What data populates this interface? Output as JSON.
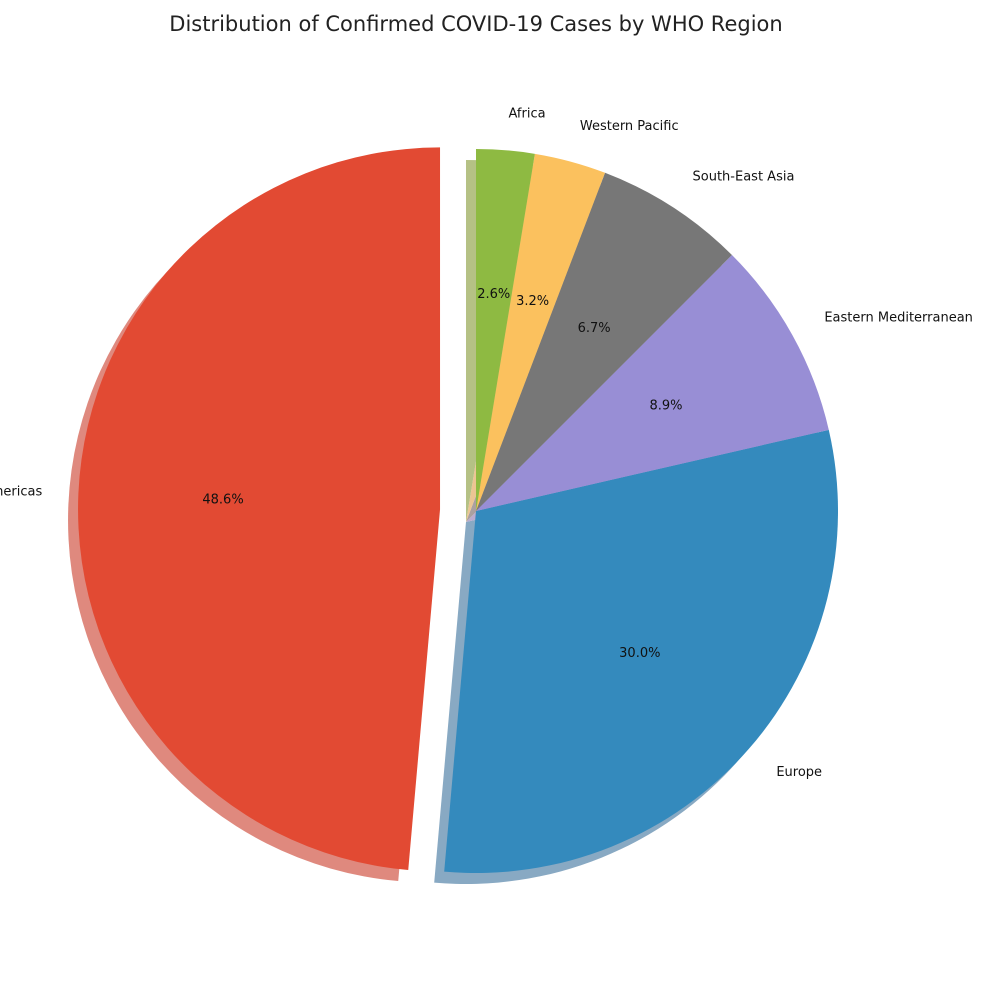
{
  "chart_data": {
    "type": "pie",
    "title": "Distribution of Confirmed COVID-19 Cases by WHO Region",
    "categories": [
      "Americas",
      "Europe",
      "Eastern Mediterranean",
      "South-East Asia",
      "Western Pacific",
      "Africa"
    ],
    "values": [
      48.6,
      30.0,
      8.9,
      6.7,
      3.2,
      2.6
    ],
    "value_labels": [
      "48.6%",
      "30.0%",
      "8.9%",
      "6.7%",
      "3.2%",
      "2.6%"
    ],
    "colors": [
      "#E24A33",
      "#348ABD",
      "#988ED5",
      "#777777",
      "#FBC15E",
      "#8EBA42"
    ],
    "exploded": [
      "Americas"
    ],
    "start_angle_deg": 90,
    "direction": "counterclockwise",
    "shadow": true,
    "legend": "none"
  }
}
